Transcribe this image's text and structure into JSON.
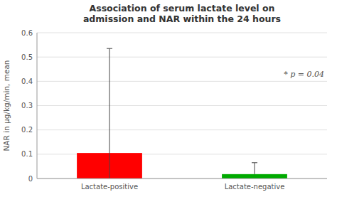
{
  "chart_data": {
    "type": "bar",
    "title": "Association of serum lactate level on\nadmission and NAR within the 24 hours",
    "ylabel": "NAR in μg/kg/min, mean",
    "categories": [
      "Lactate-positive",
      "Lactate-negative"
    ],
    "values": [
      0.105,
      0.018
    ],
    "colors": [
      "#ff0000",
      "#00aa00"
    ],
    "error_low": [
      0.0,
      0.018
    ],
    "error_high": [
      0.535,
      0.065
    ],
    "annotation": "* p = 0.04",
    "ylim": [
      0,
      0.6
    ],
    "yticks": [
      0.0,
      0.1,
      0.2,
      0.3,
      0.4,
      0.5,
      0.6
    ],
    "grid": true
  }
}
